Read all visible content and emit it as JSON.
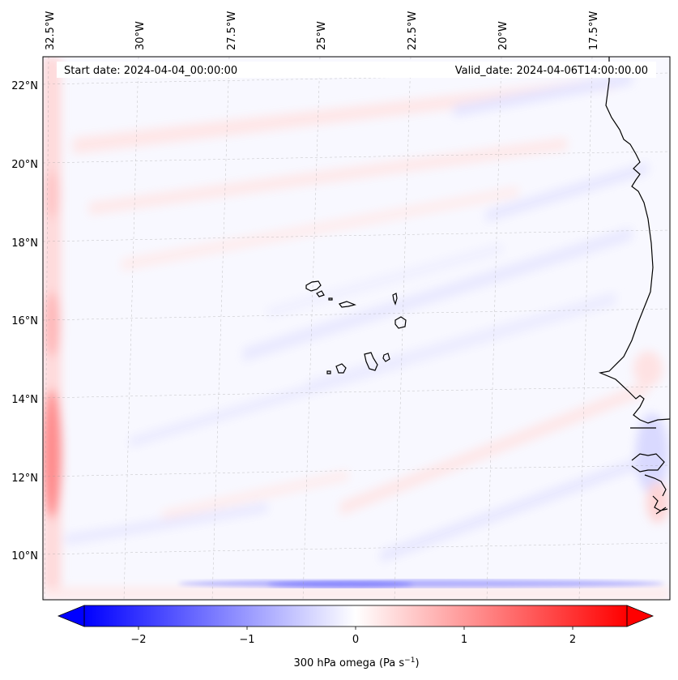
{
  "header": {
    "start_date": "Start date: 2024-04-04_00:00:00",
    "valid_date": "Valid_date: 2024-04-06T14:00:00.00"
  },
  "axes": {
    "lon_ticks": [
      "32.5°W",
      "30°W",
      "27.5°W",
      "25°W",
      "22.5°W",
      "20°W",
      "17.5°W"
    ],
    "lat_ticks": [
      "22°N",
      "20°N",
      "18°N",
      "16°N",
      "14°N",
      "12°N",
      "10°N"
    ]
  },
  "colorbar": {
    "label": "300 hPa omega (Pa s",
    "label_exp": "−1",
    "label_close": ")",
    "ticks": [
      "−2",
      "−1",
      "0",
      "1",
      "2"
    ],
    "range": [
      -2.75,
      2.75
    ],
    "colors": {
      "negative": "#0000ff",
      "zero": "#ffffff",
      "positive": "#ff0000"
    }
  },
  "map": {
    "variable": "omega",
    "level": "300 hPa",
    "lon_range": [
      -33.5,
      -15.5
    ],
    "lat_range": [
      8.8,
      22.8
    ],
    "coastline_color": "#000000"
  }
}
